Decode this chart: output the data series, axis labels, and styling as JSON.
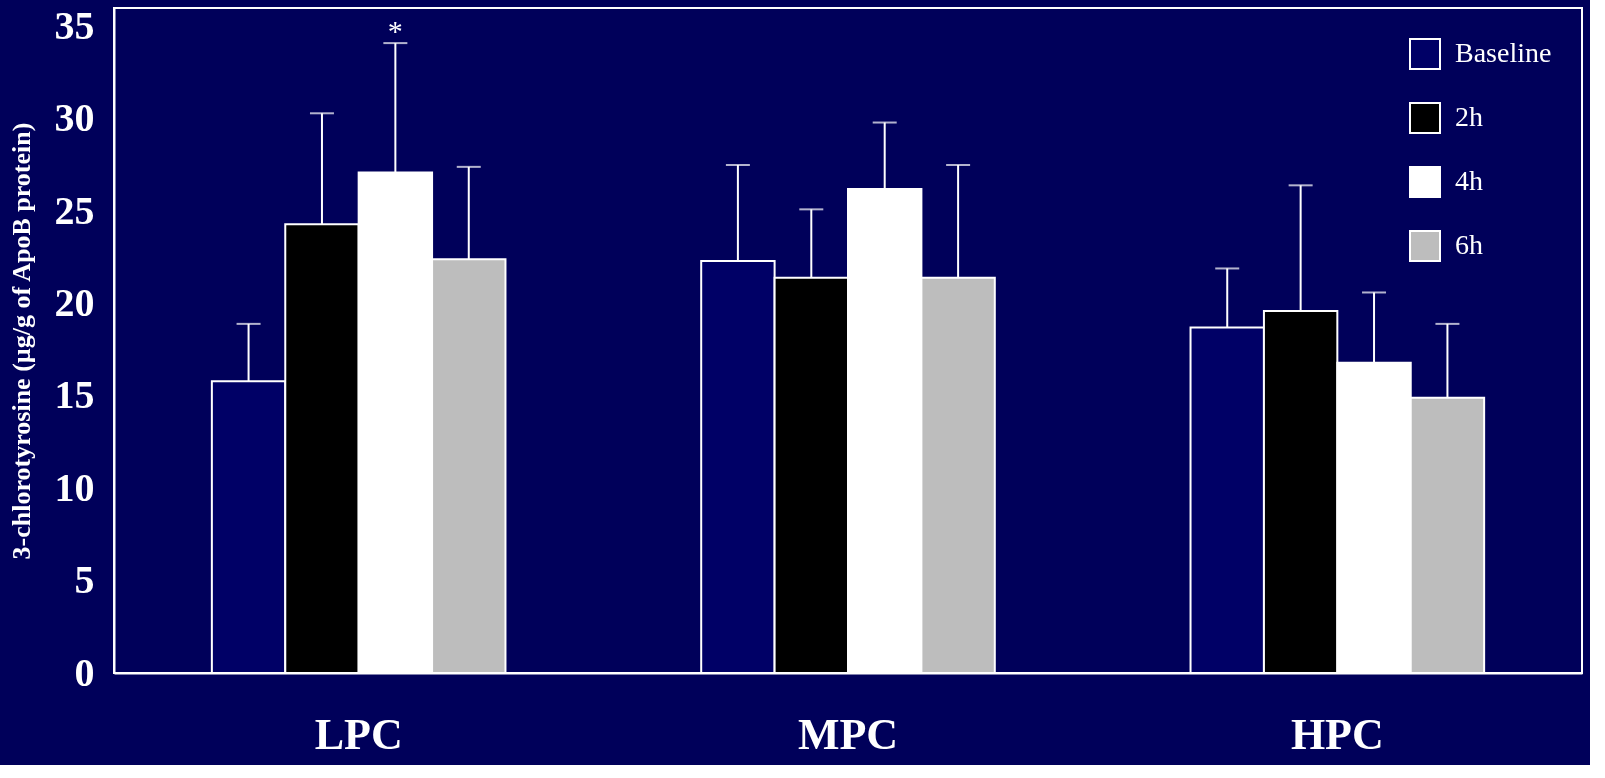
{
  "chart_data": {
    "type": "bar",
    "ylabel": "3-chlorotyrosine (µg/g of ApoB protein)",
    "categories": [
      "LPC",
      "MPC",
      "HPC"
    ],
    "series": [
      {
        "name": "Baseline",
        "color": "#000066",
        "values": [
          15.8,
          22.3,
          18.7
        ],
        "errors": [
          [
            15.8,
            18.9
          ],
          [
            22.3,
            27.5
          ],
          [
            18.7,
            21.9
          ]
        ]
      },
      {
        "name": "2h",
        "color": "#000000",
        "values": [
          24.3,
          21.4,
          19.6
        ],
        "errors": [
          [
            24.3,
            30.3
          ],
          [
            21.4,
            25.1
          ],
          [
            19.6,
            26.4
          ]
        ]
      },
      {
        "name": "4h",
        "color": "#ffffff",
        "values": [
          27.1,
          26.2,
          16.8
        ],
        "errors": [
          [
            27.1,
            34.1
          ],
          [
            26.2,
            29.8
          ],
          [
            16.8,
            20.6
          ]
        ]
      },
      {
        "name": "6h",
        "color": "#bdbdbd",
        "values": [
          22.4,
          21.4,
          14.9
        ],
        "errors": [
          [
            22.4,
            27.4
          ],
          [
            21.4,
            27.5
          ],
          [
            14.9,
            18.9
          ]
        ]
      }
    ],
    "annotations": [
      "*"
    ],
    "ylim": [
      0,
      36
    ],
    "yticks": [
      0,
      5,
      10,
      15,
      20,
      25,
      30,
      35
    ],
    "grid": false,
    "legend": "top right"
  }
}
